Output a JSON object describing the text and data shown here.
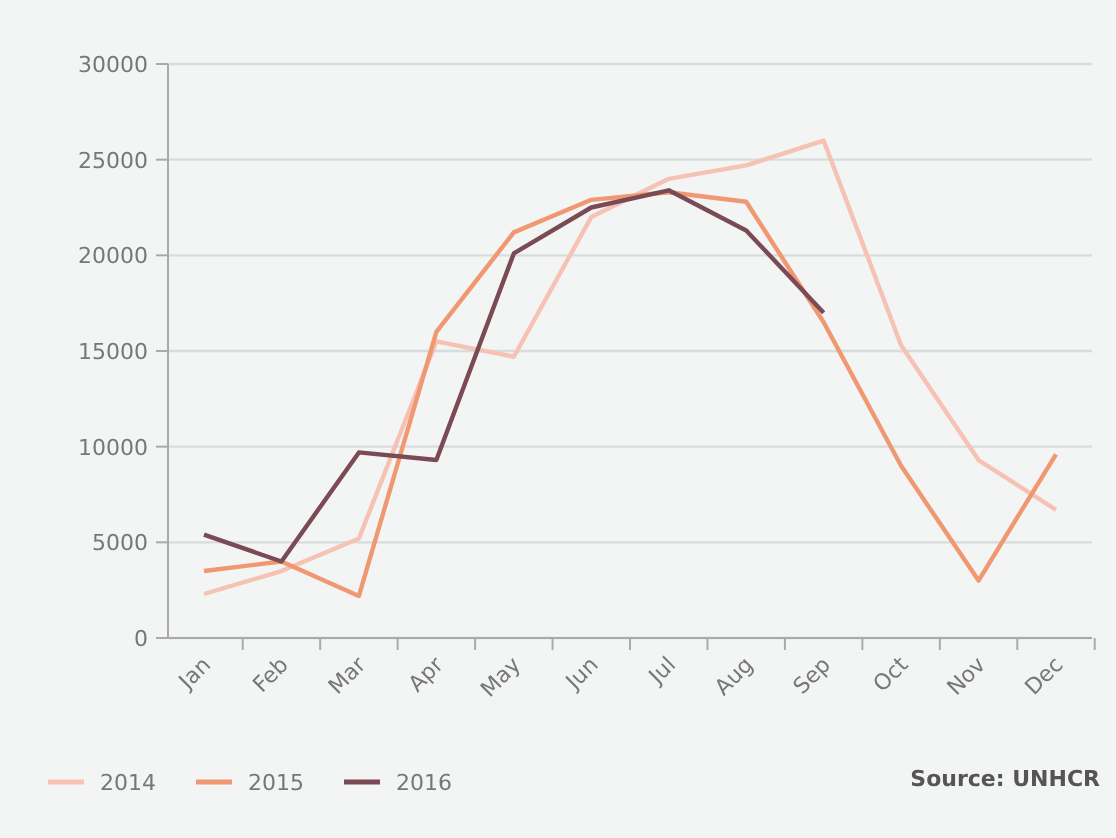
{
  "chart_data": {
    "type": "line",
    "categories": [
      "Jan",
      "Feb",
      "Mar",
      "Apr",
      "May",
      "Jun",
      "Jul",
      "Aug",
      "Sep",
      "Oct",
      "Nov",
      "Dec"
    ],
    "series": [
      {
        "name": "2014",
        "color": "#f5c2b3",
        "values": [
          2300,
          3500,
          5200,
          15500,
          14700,
          22000,
          24000,
          24700,
          26000,
          15300,
          9300,
          6700
        ]
      },
      {
        "name": "2015",
        "color": "#ef9872",
        "values": [
          3500,
          4000,
          2200,
          16000,
          21200,
          22900,
          23300,
          22800,
          16500,
          9000,
          3000,
          9600
        ]
      },
      {
        "name": "2016",
        "color": "#7a4a55",
        "values": [
          5400,
          4000,
          9700,
          9300,
          20100,
          22500,
          23400,
          21300,
          17000,
          null,
          null,
          null
        ]
      }
    ],
    "ylim": [
      0,
      30000
    ],
    "yticks": [
      0,
      5000,
      10000,
      15000,
      20000,
      25000,
      30000
    ],
    "grid": "y",
    "legend": "bottom left",
    "marker": "none",
    "line_style": "solid",
    "annotations": [
      "Source: UNHCR"
    ]
  }
}
